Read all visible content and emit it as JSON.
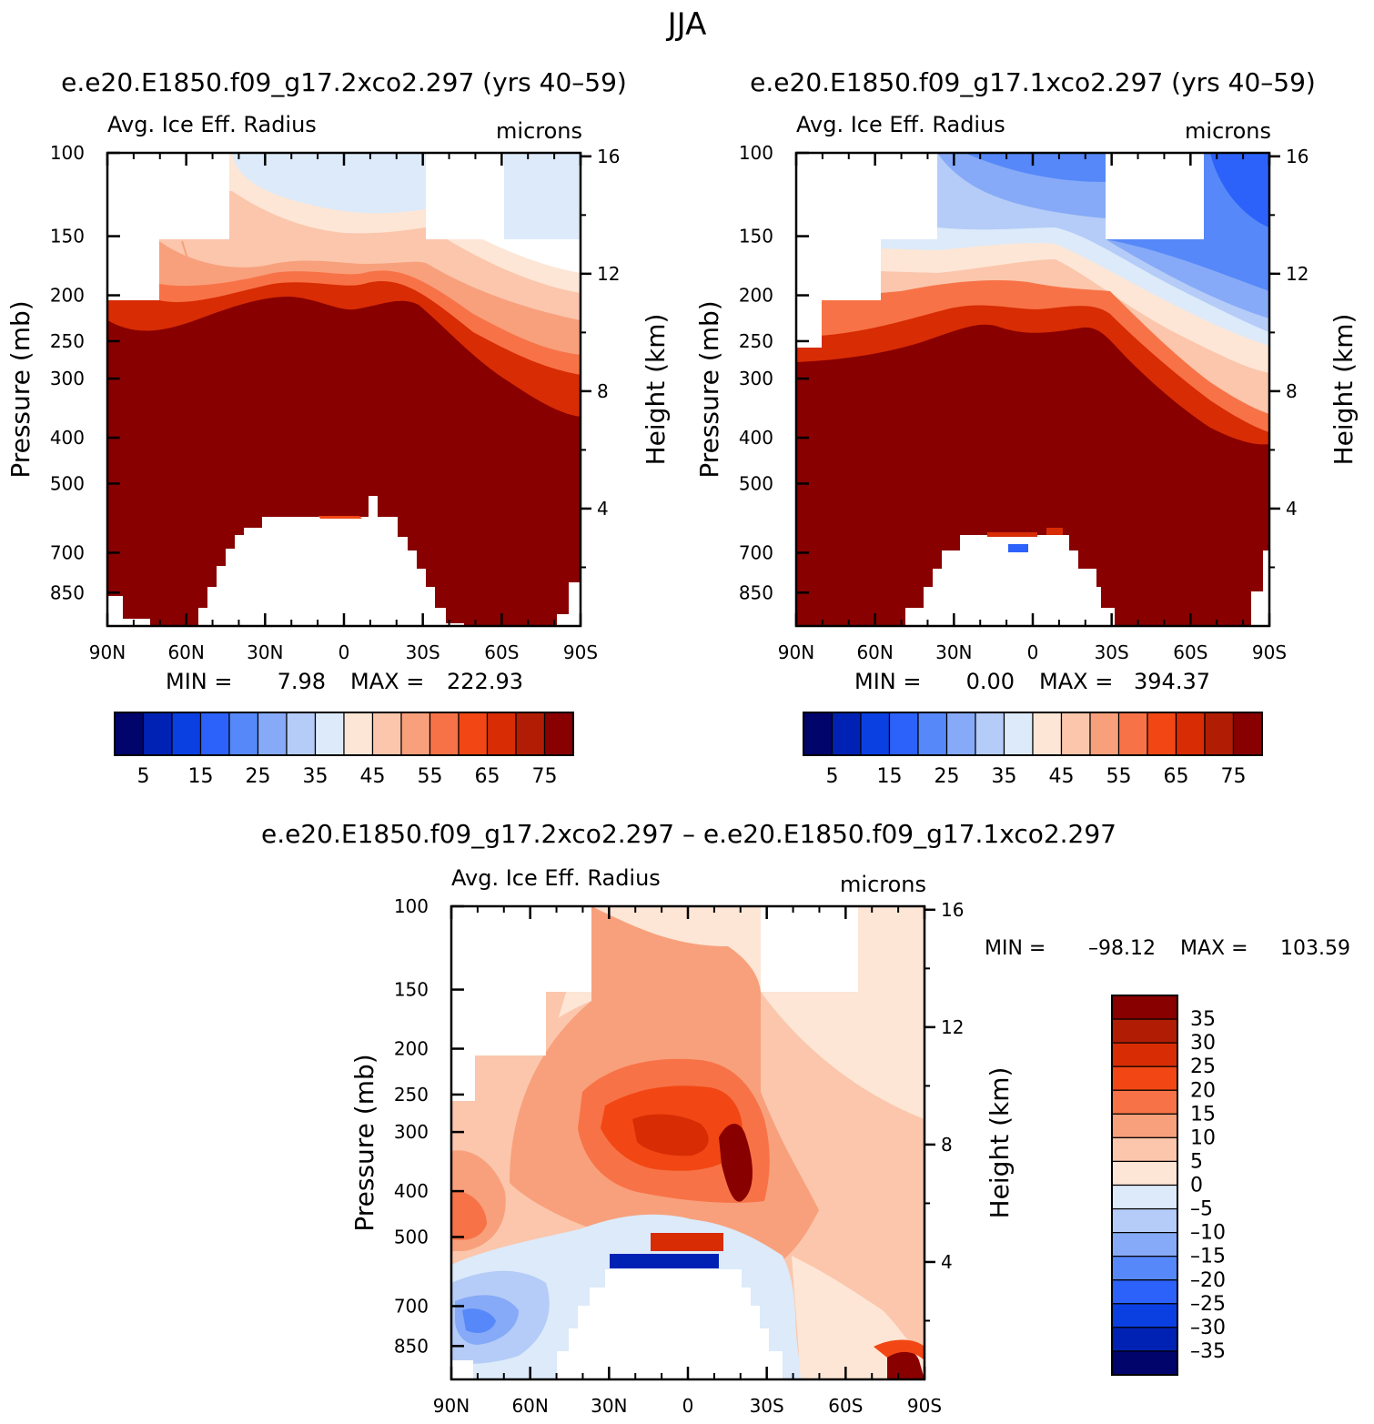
{
  "page": {
    "title": "JJA"
  },
  "palette": {
    "abs": [
      "#00046b",
      "#0022b4",
      "#0a3fe2",
      "#2c61fa",
      "#5688f9",
      "#86aaf7",
      "#b4ccf7",
      "#dceafa",
      "#fde6d5",
      "#fbc6ac",
      "#f8a07c",
      "#f77347",
      "#f24714",
      "#d82c04",
      "#b01d04",
      "#880000"
    ],
    "diff": [
      "#00046b",
      "#0022b4",
      "#0a3fe2",
      "#2c61fa",
      "#5688f9",
      "#86aaf7",
      "#b4ccf7",
      "#dceafa",
      "#fde6d5",
      "#fbc6ac",
      "#f8a07c",
      "#f77347",
      "#f24714",
      "#d82c04",
      "#b01d04",
      "#880000"
    ]
  },
  "chart_data": [
    {
      "type": "heatmap",
      "id": "panel1",
      "title": "e.e20.E1850.f09_g17.2xco2.297 (yrs 40–59)",
      "variable": "Avg. Ice Eff. Radius",
      "units": "microns",
      "ylabel": "Pressure (mb)",
      "ylabel2": "Height (km)",
      "x_ticks": [
        "90N",
        "60N",
        "30N",
        "0",
        "30S",
        "60S",
        "90S"
      ],
      "y_ticks": [
        "100",
        "150",
        "200",
        "250",
        "300",
        "400",
        "500",
        "700",
        "850"
      ],
      "y2_ticks": [
        "16",
        "12",
        "8",
        "4"
      ],
      "stats": {
        "min_label": "MIN =",
        "min": "7.98",
        "max_label": "MAX =",
        "max": "222.93"
      },
      "colorbar": {
        "orientation": "horizontal",
        "labels": [
          "5",
          "15",
          "25",
          "35",
          "45",
          "55",
          "65",
          "75"
        ]
      },
      "ylim": [
        100,
        1000
      ],
      "xlim": [
        90,
        -90
      ]
    },
    {
      "type": "heatmap",
      "id": "panel2",
      "title": "e.e20.E1850.f09_g17.1xco2.297 (yrs 40–59)",
      "variable": "Avg. Ice Eff. Radius",
      "units": "microns",
      "ylabel": "Pressure (mb)",
      "ylabel2": "Height (km)",
      "x_ticks": [
        "90N",
        "60N",
        "30N",
        "0",
        "30S",
        "60S",
        "90S"
      ],
      "y_ticks": [
        "100",
        "150",
        "200",
        "250",
        "300",
        "400",
        "500",
        "700",
        "850"
      ],
      "y2_ticks": [
        "16",
        "12",
        "8",
        "4"
      ],
      "stats": {
        "min_label": "MIN =",
        "min": "0.00",
        "max_label": "MAX =",
        "max": "394.37"
      },
      "colorbar": {
        "orientation": "horizontal",
        "labels": [
          "5",
          "15",
          "25",
          "35",
          "45",
          "55",
          "65",
          "75"
        ]
      },
      "ylim": [
        100,
        1000
      ],
      "xlim": [
        90,
        -90
      ]
    },
    {
      "type": "heatmap",
      "id": "panel3",
      "title": "e.e20.E1850.f09_g17.2xco2.297 – e.e20.E1850.f09_g17.1xco2.297",
      "variable": "Avg. Ice Eff. Radius",
      "units": "microns",
      "ylabel": "Pressure (mb)",
      "ylabel2": "Height (km)",
      "x_ticks": [
        "90N",
        "60N",
        "30N",
        "0",
        "30S",
        "60S",
        "90S"
      ],
      "y_ticks": [
        "100",
        "150",
        "200",
        "250",
        "300",
        "400",
        "500",
        "700",
        "850"
      ],
      "y2_ticks": [
        "16",
        "12",
        "8",
        "4"
      ],
      "stats": {
        "min_label": "MIN =",
        "min": "–98.12",
        "max_label": "MAX =",
        "max": "103.59"
      },
      "colorbar": {
        "orientation": "vertical",
        "labels": [
          "35",
          "30",
          "25",
          "20",
          "15",
          "10",
          "5",
          "0",
          "–5",
          "–10",
          "–15",
          "–20",
          "–25",
          "–30",
          "–35"
        ]
      },
      "ylim": [
        100,
        1000
      ],
      "xlim": [
        90,
        -90
      ]
    }
  ]
}
